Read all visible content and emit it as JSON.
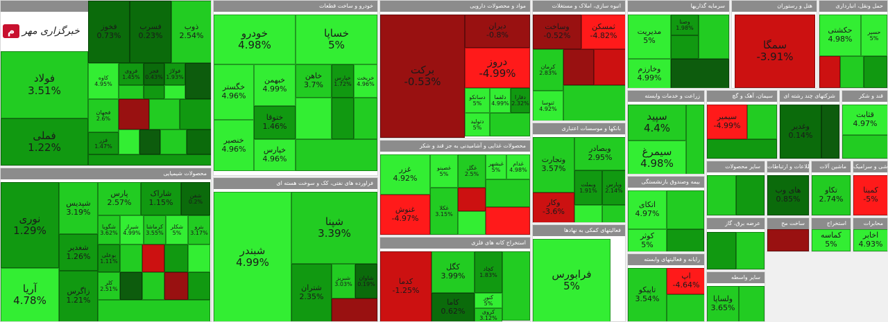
{
  "colors": {
    "g4": "#33ee33",
    "g3": "#22cc22",
    "g2": "#119911",
    "g1": "#0b6b0b",
    "n": "#0d5c0d",
    "r1": "#991111",
    "r2": "#cc1111",
    "r3": "#ff1a1a"
  },
  "logo": {
    "icon": "logo-mark-icon",
    "text": "خبرگزاری مهر"
  },
  "sectors": [
    {
      "id": "basic-metals",
      "title": "فلزات اساسی",
      "tiles": [
        {
          "n": "فولاد",
          "c": "3.51%"
        },
        {
          "n": "فملی",
          "c": "1.22%"
        },
        {
          "n": "فخوز",
          "c": "0.73%"
        },
        {
          "n": "فسرب",
          "c": "0.23%"
        },
        {
          "n": "ذوب",
          "c": "2.54%"
        },
        {
          "n": "کاوه",
          "c": "4.95%"
        },
        {
          "n": "فروی",
          "c": "1.45%"
        },
        {
          "n": "فجر",
          "c": "0.43%"
        },
        {
          "n": "فولاژ",
          "c": "1.93%"
        },
        {
          "n": "فجهان",
          "c": "2.6%"
        },
        {
          "n": "فزر",
          "c": "1.47%"
        }
      ]
    },
    {
      "id": "chemical",
      "title": "محصولات شیمیایی",
      "tiles": [
        {
          "n": "نوری",
          "c": "1.29%"
        },
        {
          "n": "آریا",
          "c": "4.78%"
        },
        {
          "n": "شپدیس",
          "c": "3.19%"
        },
        {
          "n": "شغدیر",
          "c": "1.26%"
        },
        {
          "n": "زاگرس",
          "c": "1.21%"
        },
        {
          "n": "پارس",
          "c": "2.57%"
        },
        {
          "n": "شاراک",
          "c": "1.15%"
        },
        {
          "n": "شفن",
          "c": "0.2%"
        },
        {
          "n": "شگویا",
          "c": "3.62%"
        },
        {
          "n": "بوعلی",
          "c": "1.11%"
        },
        {
          "n": "کلر",
          "c": "2.51%"
        },
        {
          "n": "شیراز",
          "c": "4.99%"
        },
        {
          "n": "کرماشا",
          "c": "3.55%"
        },
        {
          "n": "شکلر",
          "c": "5%"
        },
        {
          "n": "بترو",
          "c": "3.17%"
        }
      ]
    },
    {
      "id": "auto",
      "title": "خودرو و ساخت قطعات",
      "tiles": [
        {
          "n": "خودرو",
          "c": "4.98%"
        },
        {
          "n": "خساپا",
          "c": "5%"
        },
        {
          "n": "خگستر",
          "c": "4.96%"
        },
        {
          "n": "خبهمن",
          "c": "4.99%"
        },
        {
          "n": "خاهن",
          "c": "3.7%"
        },
        {
          "n": "خپارس",
          "c": "1.72%"
        },
        {
          "n": "خنصیر",
          "c": "4.96%"
        },
        {
          "n": "ختوقا",
          "c": "1.46%"
        },
        {
          "n": "خپارس",
          "c": "4.96%"
        },
        {
          "n": "خریخت",
          "c": "4.96%"
        }
      ]
    },
    {
      "id": "refinery",
      "title": "فراورده های نفتی، کک و سوخت هسته ای",
      "tiles": [
        {
          "n": "شبندر",
          "c": "4.99%"
        },
        {
          "n": "شپنا",
          "c": "3.39%"
        },
        {
          "n": "شتران",
          "c": "2.35%"
        },
        {
          "n": "شبریز",
          "c": "3.03%"
        },
        {
          "n": "شاوان",
          "c": "0.19%"
        }
      ]
    },
    {
      "id": "pharma",
      "title": "مواد و محصولات دارویی",
      "tiles": [
        {
          "n": "برکت",
          "c": "-0.53%"
        },
        {
          "n": "دیران",
          "c": "-0.8%"
        },
        {
          "n": "دروز",
          "c": "-4.99%"
        },
        {
          "n": "دسانکو",
          "c": "5%"
        },
        {
          "n": "دتولید",
          "c": "5%"
        },
        {
          "n": "دلقما",
          "c": "4.99%"
        },
        {
          "n": "دفارا",
          "c": "2.32%"
        }
      ]
    },
    {
      "id": "food",
      "title": "محصولات غذایی و آشامیدنی به جز قند و شکر",
      "tiles": [
        {
          "n": "غزر",
          "c": "4.92%"
        },
        {
          "n": "غنوش",
          "c": "-4.97%"
        },
        {
          "n": "غصینو",
          "c": "5%"
        },
        {
          "n": "غکلا",
          "c": "3.15%"
        },
        {
          "n": "غگل",
          "c": "2.5%"
        },
        {
          "n": "غبشهر",
          "c": "5%"
        },
        {
          "n": "غدام",
          "c": "4.98%"
        }
      ]
    },
    {
      "id": "mining",
      "title": "استخراج کانه های فلزی",
      "tiles": [
        {
          "n": "کدما",
          "c": "-1.25%"
        },
        {
          "n": "کگل",
          "c": "3.99%"
        },
        {
          "n": "کچاد",
          "c": "1.83%"
        },
        {
          "n": "کاما",
          "c": "0.62%"
        },
        {
          "n": "کنور",
          "c": "5%"
        },
        {
          "n": "کروی",
          "c": "3.12%"
        }
      ]
    },
    {
      "id": "real-estate",
      "title": "انبوه سازی، املاک و مستغلات",
      "tiles": [
        {
          "n": "وساخت",
          "c": "-0.52%"
        },
        {
          "n": "ثمسکن",
          "c": "-4.82%"
        },
        {
          "n": "کرمان",
          "c": "2.83%"
        },
        {
          "n": "ثنوسا",
          "c": "4.92%"
        }
      ]
    },
    {
      "id": "banks",
      "title": "بانکها و موسسات اعتباری",
      "tiles": [
        {
          "n": "وتجارت",
          "c": "3.57%"
        },
        {
          "n": "وبصادر",
          "c": "2.95%"
        },
        {
          "n": "وپارس",
          "c": "2.14%"
        },
        {
          "n": "وکار",
          "c": "-3.6%"
        },
        {
          "n": "وبملت",
          "c": "1.91%"
        }
      ]
    },
    {
      "id": "financial-aux",
      "title": "فعالیتهای کمکی به نهادها",
      "tiles": [
        {
          "n": "فرابورس",
          "c": "5%"
        }
      ]
    },
    {
      "id": "investment",
      "title": "سرمایه گذاریها",
      "tiles": [
        {
          "n": "مدیریت",
          "c": "5%"
        },
        {
          "n": "وخارزم",
          "c": "4.99%"
        },
        {
          "n": "وصنا",
          "c": "1.98%"
        }
      ]
    },
    {
      "id": "hotel",
      "title": "هتل و رستوران",
      "tiles": [
        {
          "n": "سمگا",
          "c": "-3.91%"
        }
      ]
    },
    {
      "id": "transport",
      "title": "حمل ونقل، انبارداری",
      "tiles": [
        {
          "n": "حکشتی",
          "c": "4.98%"
        },
        {
          "n": "حسیر",
          "c": "5%"
        }
      ]
    },
    {
      "id": "agriculture",
      "title": "زراعت و خدمات وابسته",
      "tiles": [
        {
          "n": "سپید",
          "c": "4.4%"
        },
        {
          "n": "سیمرغ",
          "c": "4.98%"
        }
      ]
    },
    {
      "id": "cement",
      "title": "سیمان، آهک و گچ",
      "tiles": [
        {
          "n": "سیمیر",
          "c": "-4.99%"
        }
      ]
    },
    {
      "id": "multi",
      "title": "شرکتهای چند رشته ای",
      "tiles": [
        {
          "n": "وغدیر",
          "c": "0.14%"
        }
      ]
    },
    {
      "id": "sugar",
      "title": "قند و شکر",
      "tiles": [
        {
          "n": "قثابت",
          "c": "4.97%"
        }
      ]
    },
    {
      "id": "insurance",
      "title": "بیمه وصندوق بازنشستگی",
      "tiles": [
        {
          "n": "اتکای",
          "c": "4.97%"
        },
        {
          "n": "کوثر",
          "c": "5%"
        }
      ]
    },
    {
      "id": "other-products",
      "title": "سایر محصولات",
      "tiles": []
    },
    {
      "id": "it",
      "title": "اطلاعات و ارتباطات",
      "tiles": [
        {
          "n": "های وب",
          "c": "0.85%"
        }
      ]
    },
    {
      "id": "machinery",
      "title": "ماشین آلات",
      "tiles": [
        {
          "n": "تکاو",
          "c": "2.74%"
        }
      ]
    },
    {
      "id": "pottery",
      "title": "کاشی و سرامیک",
      "tiles": [
        {
          "n": "کمینا",
          "c": "-5%"
        }
      ]
    },
    {
      "id": "computer",
      "title": "رایانه و فعالیتهای وابسته",
      "tiles": [
        {
          "n": "تاپیکو",
          "c": "3.54%"
        },
        {
          "n": "اپ",
          "c": "-4.64%"
        }
      ]
    },
    {
      "id": "financial-other",
      "title": "سایر واسطه",
      "tiles": [
        {
          "n": "ولساپا",
          "c": "3.65%"
        }
      ]
    },
    {
      "id": "utilities",
      "title": "عرضه برق، گاز",
      "tiles": []
    },
    {
      "id": "construction",
      "title": "ساخت مح",
      "tiles": []
    },
    {
      "id": "mining-other",
      "title": "استخراج",
      "tiles": [
        {
          "n": "کماسه",
          "c": "5%"
        }
      ]
    },
    {
      "id": "contracting",
      "title": "محابرات",
      "tiles": [
        {
          "n": "اخابر",
          "c": "4.93%"
        }
      ]
    }
  ]
}
